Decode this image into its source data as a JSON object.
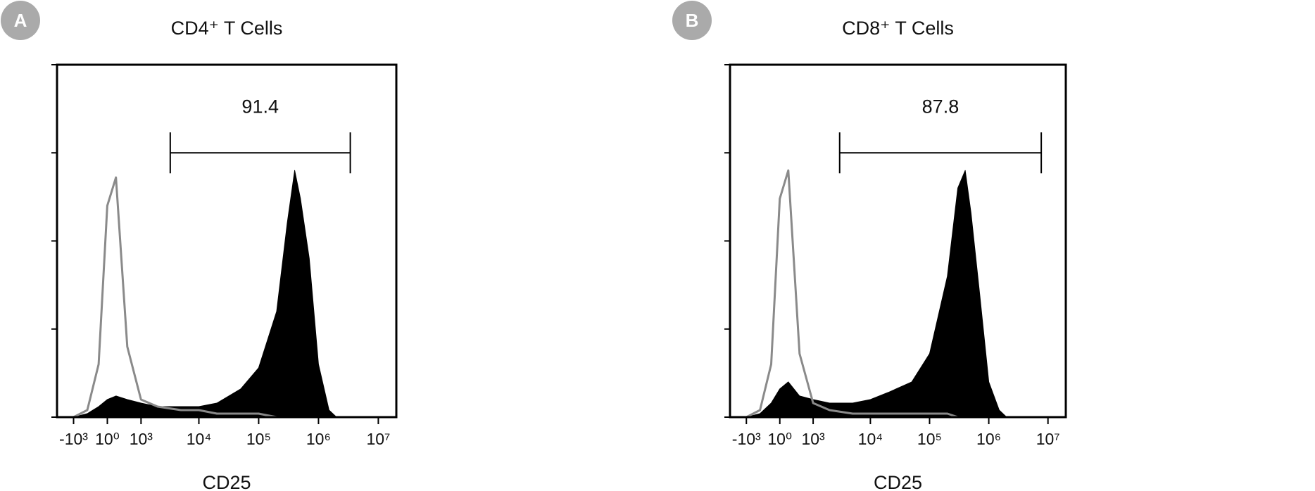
{
  "chart_data": [
    {
      "type": "area",
      "panel": "A",
      "title": "CD4⁺ T Cells",
      "x_label": "CD25",
      "x": [
        -1000,
        -500,
        -200,
        0,
        200,
        500,
        1000,
        2000,
        5000,
        10000,
        20000,
        50000,
        100000,
        200000,
        300000,
        400000,
        500000,
        700000,
        1000000,
        1500000,
        2000000,
        5000000
      ],
      "series": [
        {
          "color": "#000000",
          "fill": true,
          "values": [
            0,
            1,
            3,
            5,
            6,
            5,
            4,
            3,
            3,
            3,
            4,
            8,
            14,
            30,
            55,
            70,
            62,
            45,
            15,
            2,
            0,
            0
          ]
        },
        {
          "color": "#8a8a8a",
          "fill": false,
          "values": [
            0,
            2,
            15,
            60,
            68,
            20,
            5,
            3,
            2,
            2,
            1,
            1,
            1,
            0,
            0,
            0,
            0,
            0,
            0,
            0,
            0,
            0
          ]
        }
      ],
      "gate": {
        "x": [
          3300,
          3400000
        ],
        "value": 91.4
      },
      "xlim": [
        -2000,
        20000000
      ],
      "xticks": [
        {
          "value": -1000,
          "label": "-10³"
        },
        {
          "value": 1,
          "label": "10⁰"
        },
        {
          "value": 1000,
          "label": "10³"
        },
        {
          "value": 10000,
          "label": "10⁴"
        },
        {
          "value": 100000,
          "label": "10⁵"
        },
        {
          "value": 1000000,
          "label": "10⁶"
        },
        {
          "value": 10000000,
          "label": "10⁷"
        }
      ],
      "ylim": [
        0,
        100
      ],
      "yticks": [
        0,
        25,
        50,
        75,
        100
      ]
    },
    {
      "type": "area",
      "panel": "B",
      "title": "CD8⁺ T Cells",
      "x_label": "CD25",
      "x": [
        -1000,
        -500,
        -200,
        0,
        200,
        500,
        1000,
        2000,
        5000,
        10000,
        20000,
        50000,
        100000,
        200000,
        300000,
        400000,
        500000,
        700000,
        1000000,
        1500000,
        2000000,
        5000000
      ],
      "series": [
        {
          "color": "#000000",
          "fill": true,
          "values": [
            0,
            1,
            4,
            8,
            10,
            6,
            5,
            4,
            4,
            5,
            7,
            10,
            18,
            40,
            65,
            70,
            58,
            35,
            10,
            2,
            0,
            0
          ]
        },
        {
          "color": "#8a8a8a",
          "fill": false,
          "values": [
            0,
            2,
            15,
            62,
            70,
            18,
            4,
            2,
            1,
            1,
            1,
            1,
            1,
            1,
            0,
            0,
            0,
            0,
            0,
            0,
            0,
            0
          ]
        }
      ],
      "gate": {
        "x": [
          3000,
          7700000
        ],
        "value": 87.8
      },
      "xlim": [
        -2000,
        20000000
      ],
      "xticks": [
        {
          "value": -1000,
          "label": "-10³"
        },
        {
          "value": 1,
          "label": "10⁰"
        },
        {
          "value": 1000,
          "label": "10³"
        },
        {
          "value": 10000,
          "label": "10⁴"
        },
        {
          "value": 100000,
          "label": "10⁵"
        },
        {
          "value": 1000000,
          "label": "10⁶"
        },
        {
          "value": 10000000,
          "label": "10⁷"
        }
      ],
      "ylim": [
        0,
        100
      ],
      "yticks": [
        0,
        25,
        50,
        75,
        100
      ]
    }
  ]
}
